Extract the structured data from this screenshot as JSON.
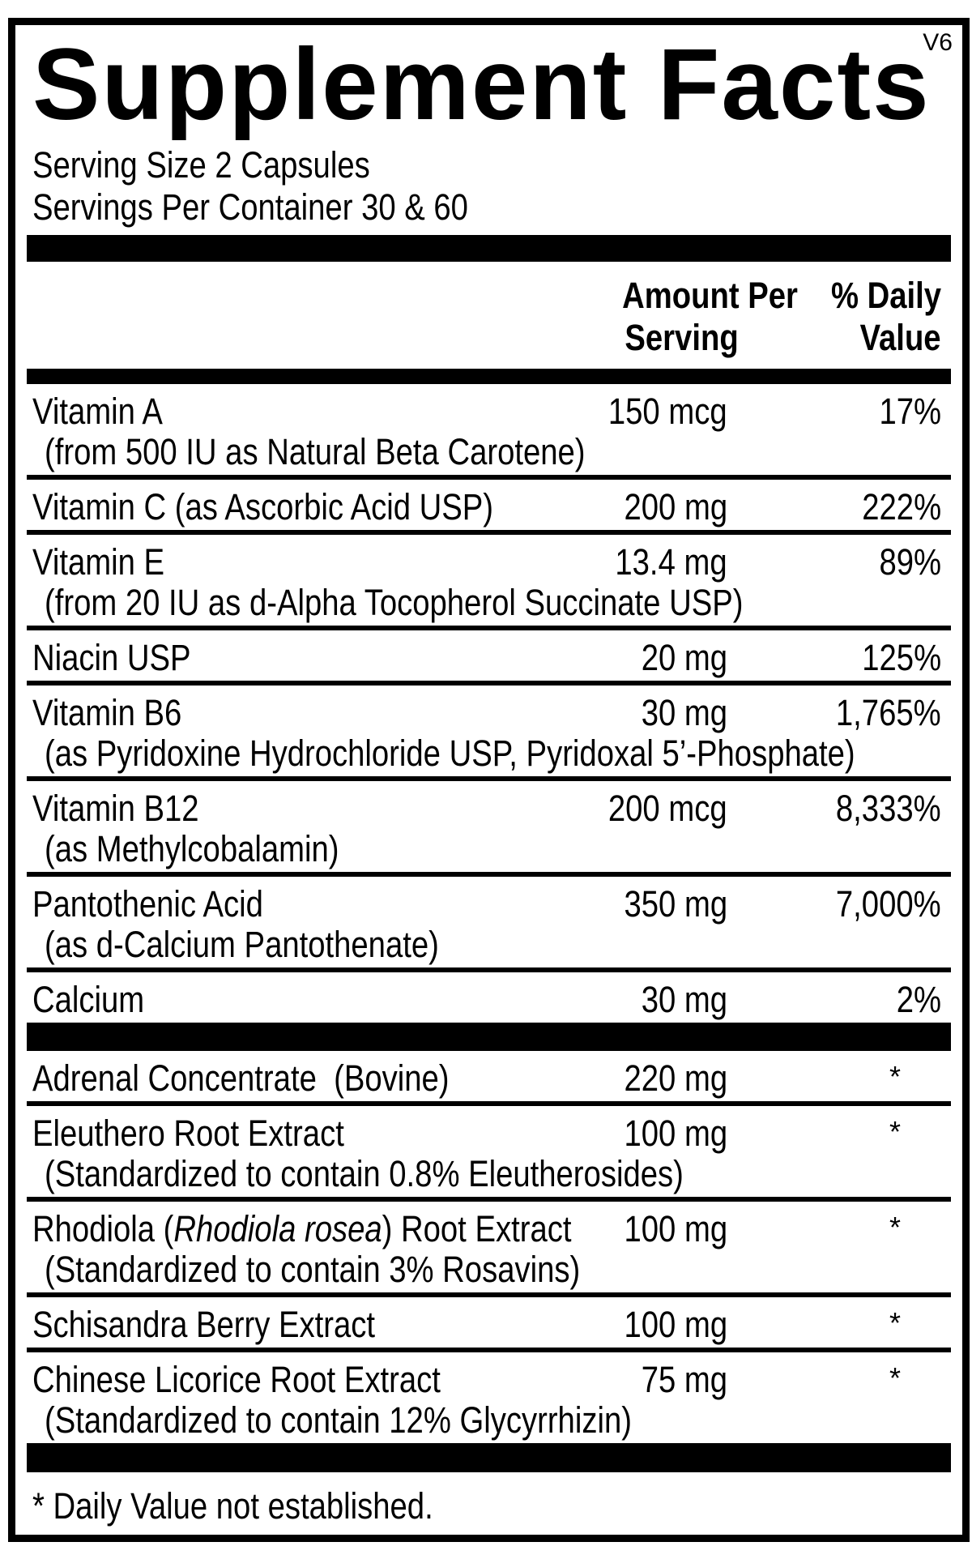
{
  "colors": {
    "ink": "#000000",
    "paper": "#ffffff"
  },
  "version_tag": "V6",
  "title": "Supplement Facts",
  "serving": {
    "size_line": "Serving Size 2 Capsules",
    "per_container_line": "Servings Per Container 30 & 60"
  },
  "header": {
    "amount_col_line1": "Amount Per",
    "amount_col_line2": "Serving",
    "dv_col_line1": "% Daily",
    "dv_col_line2": "Value"
  },
  "nutrients": [
    {
      "name": "Vitamin A",
      "note": "(from 500 IU as Natural Beta Carotene)",
      "amount": "150 mcg",
      "daily_value": "17%"
    },
    {
      "name": "Vitamin C (as Ascorbic Acid USP)",
      "amount": "200 mg",
      "daily_value": "222%"
    },
    {
      "name": "Vitamin E",
      "note": "(from 20 IU as d-Alpha Tocopherol Succinate USP)",
      "amount": "13.4 mg",
      "daily_value": "89%"
    },
    {
      "name": "Niacin USP",
      "amount": "20 mg",
      "daily_value": "125%"
    },
    {
      "name": "Vitamin B6",
      "note": "(as Pyridoxine Hydrochloride USP, Pyridoxal 5’-Phosphate)",
      "amount": "30 mg",
      "daily_value": "1,765%"
    },
    {
      "name": "Vitamin B12",
      "note": "(as Methylcobalamin)",
      "amount": "200 mcg",
      "daily_value": "8,333%"
    },
    {
      "name": "Pantothenic Acid",
      "note": "(as d-Calcium Pantothenate)",
      "amount": "350 mg",
      "daily_value": "7,000%"
    },
    {
      "name": "Calcium",
      "amount": "30 mg",
      "daily_value": "2%"
    }
  ],
  "botanicals": [
    {
      "name": "Adrenal Concentrate  (Bovine)",
      "amount": "220 mg",
      "daily_value": "*"
    },
    {
      "name": "Eleuthero Root Extract",
      "note": "(Standardized to contain 0.8% Eleutherosides)",
      "amount": "100 mg",
      "daily_value": "*"
    },
    {
      "name_prefix": "Rhodiola (",
      "name_italic": "Rhodiola rosea",
      "name_suffix": ") Root Extract",
      "note": "(Standardized to contain 3% Rosavins)",
      "amount": "100 mg",
      "daily_value": "*"
    },
    {
      "name": "Schisandra Berry Extract",
      "amount": "100 mg",
      "daily_value": "*"
    },
    {
      "name": "Chinese Licorice Root Extract",
      "note": "(Standardized to contain 12% Glycyrrhizin)",
      "amount": "75 mg",
      "daily_value": "*"
    }
  ],
  "footnote": "* Daily Value not established."
}
